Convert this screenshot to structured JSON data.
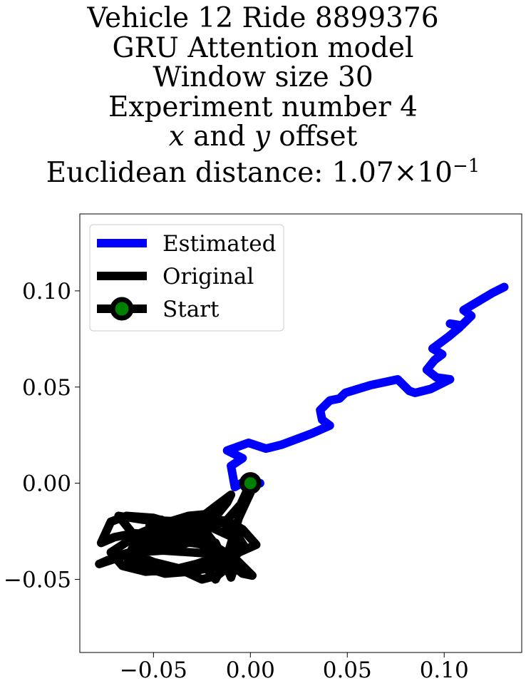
{
  "chart_data": {
    "type": "line",
    "title_lines": {
      "line1": "Vehicle 12 Ride 8899376",
      "line2": "GRU Attention model",
      "line3": "Window size 30",
      "line4": "Experiment number 4",
      "line5_x": "x",
      "line5_and": " and ",
      "line5_y": "y",
      "line5_rest": " offset",
      "line6_prefix": "Euclidean distance: 1.07",
      "line6_times": "×",
      "line6_base": "10",
      "line6_exp": "−1"
    },
    "xlim": [
      -0.088,
      0.14
    ],
    "ylim": [
      -0.088,
      0.14
    ],
    "x_ticks": [
      {
        "value": -0.05,
        "label": "−0.05"
      },
      {
        "value": 0.0,
        "label": "0.00"
      },
      {
        "value": 0.05,
        "label": "0.05"
      },
      {
        "value": 0.1,
        "label": "0.10"
      }
    ],
    "y_ticks": [
      {
        "value": 0.1,
        "label": "0.10"
      },
      {
        "value": 0.05,
        "label": "0.05"
      },
      {
        "value": 0.0,
        "label": "0.00"
      },
      {
        "value": -0.05,
        "label": "−0.05"
      }
    ],
    "legend": {
      "placement": "top-left",
      "entries": [
        {
          "label": "Estimated",
          "color": "#0000ff",
          "marker": false
        },
        {
          "label": "Original",
          "color": "#000000",
          "marker": false
        },
        {
          "label": "Start",
          "color": "#000000",
          "marker": true,
          "marker_face": "#008000"
        }
      ]
    },
    "series": [
      {
        "name": "Estimated",
        "color": "#0000ff",
        "x": [
          0.005,
          -0.003,
          -0.008,
          -0.01,
          -0.004,
          -0.012,
          -0.001,
          0.008,
          0.016,
          0.024,
          0.032,
          0.041,
          0.037,
          0.036,
          0.041,
          0.046,
          0.049,
          0.062,
          0.076,
          0.08,
          0.082,
          0.085,
          0.093,
          0.103,
          0.096,
          0.091,
          0.095,
          0.099,
          0.094,
          0.102,
          0.108,
          0.103,
          0.109,
          0.114,
          0.11,
          0.115,
          0.12,
          0.125,
          0.131
        ],
        "y": [
          0.0,
          0.001,
          -0.002,
          0.009,
          0.013,
          0.017,
          0.021,
          0.018,
          0.02,
          0.023,
          0.026,
          0.03,
          0.033,
          0.038,
          0.043,
          0.044,
          0.047,
          0.051,
          0.054,
          0.05,
          0.048,
          0.047,
          0.049,
          0.054,
          0.055,
          0.059,
          0.064,
          0.067,
          0.07,
          0.076,
          0.081,
          0.083,
          0.082,
          0.087,
          0.09,
          0.093,
          0.096,
          0.099,
          0.102
        ]
      },
      {
        "name": "Original",
        "color": "#000000",
        "x": [
          0.0,
          -0.005,
          -0.012,
          -0.02,
          -0.03,
          -0.045,
          -0.06,
          -0.07,
          -0.077,
          -0.072,
          -0.064,
          -0.05,
          -0.04,
          -0.046,
          -0.056,
          -0.069,
          -0.078,
          -0.06,
          -0.045,
          -0.03,
          -0.016,
          -0.008,
          -0.01,
          -0.014,
          -0.005,
          -0.02,
          -0.035,
          -0.055,
          -0.068,
          -0.06,
          -0.048,
          -0.038,
          -0.024,
          -0.018,
          -0.012,
          -0.017,
          -0.025,
          -0.038,
          -0.05,
          -0.062,
          -0.057,
          -0.045,
          -0.032,
          -0.022,
          -0.015,
          -0.008,
          -0.003,
          -0.01,
          -0.02,
          -0.032,
          -0.044,
          -0.054,
          -0.063,
          -0.058,
          -0.046,
          -0.035,
          -0.026,
          -0.021,
          -0.015,
          -0.009,
          -0.004,
          0.001,
          -0.008,
          -0.018,
          -0.03,
          -0.042,
          -0.05,
          -0.045,
          -0.033,
          -0.021,
          -0.011,
          -0.004,
          0.003,
          -0.006,
          -0.016,
          -0.028,
          -0.04,
          -0.054,
          -0.066,
          -0.072,
          -0.063,
          -0.05,
          -0.038,
          -0.026,
          -0.016,
          -0.012,
          -0.01,
          -0.018,
          -0.027,
          -0.036,
          -0.046,
          -0.052,
          -0.046,
          -0.036,
          -0.026,
          -0.02,
          -0.022,
          -0.018,
          -0.012,
          -0.006,
          0.0
        ],
        "y": [
          0.0,
          -0.011,
          -0.019,
          -0.022,
          -0.026,
          -0.027,
          -0.026,
          -0.028,
          -0.031,
          -0.02,
          -0.017,
          -0.018,
          -0.021,
          -0.029,
          -0.034,
          -0.038,
          -0.042,
          -0.036,
          -0.035,
          -0.036,
          -0.037,
          -0.043,
          -0.049,
          -0.039,
          -0.03,
          -0.023,
          -0.02,
          -0.019,
          -0.017,
          -0.027,
          -0.03,
          -0.033,
          -0.028,
          -0.031,
          -0.044,
          -0.048,
          -0.05,
          -0.044,
          -0.041,
          -0.036,
          -0.026,
          -0.021,
          -0.017,
          -0.016,
          -0.02,
          -0.025,
          -0.033,
          -0.04,
          -0.044,
          -0.046,
          -0.047,
          -0.044,
          -0.04,
          -0.031,
          -0.027,
          -0.024,
          -0.021,
          -0.028,
          -0.036,
          -0.043,
          -0.047,
          -0.048,
          -0.039,
          -0.033,
          -0.031,
          -0.03,
          -0.032,
          -0.022,
          -0.019,
          -0.018,
          -0.02,
          -0.024,
          -0.032,
          -0.036,
          -0.038,
          -0.042,
          -0.045,
          -0.046,
          -0.043,
          -0.036,
          -0.03,
          -0.028,
          -0.024,
          -0.02,
          -0.015,
          -0.01,
          -0.006,
          -0.012,
          -0.019,
          -0.025,
          -0.028,
          -0.022,
          -0.019,
          -0.024,
          -0.031,
          -0.037,
          -0.045,
          -0.05,
          -0.038,
          -0.018,
          -0.005
        ]
      }
    ],
    "start_point": {
      "x": 0.0,
      "y": 0.0,
      "marker_face": "#008000",
      "marker_edge": "#000000"
    }
  }
}
